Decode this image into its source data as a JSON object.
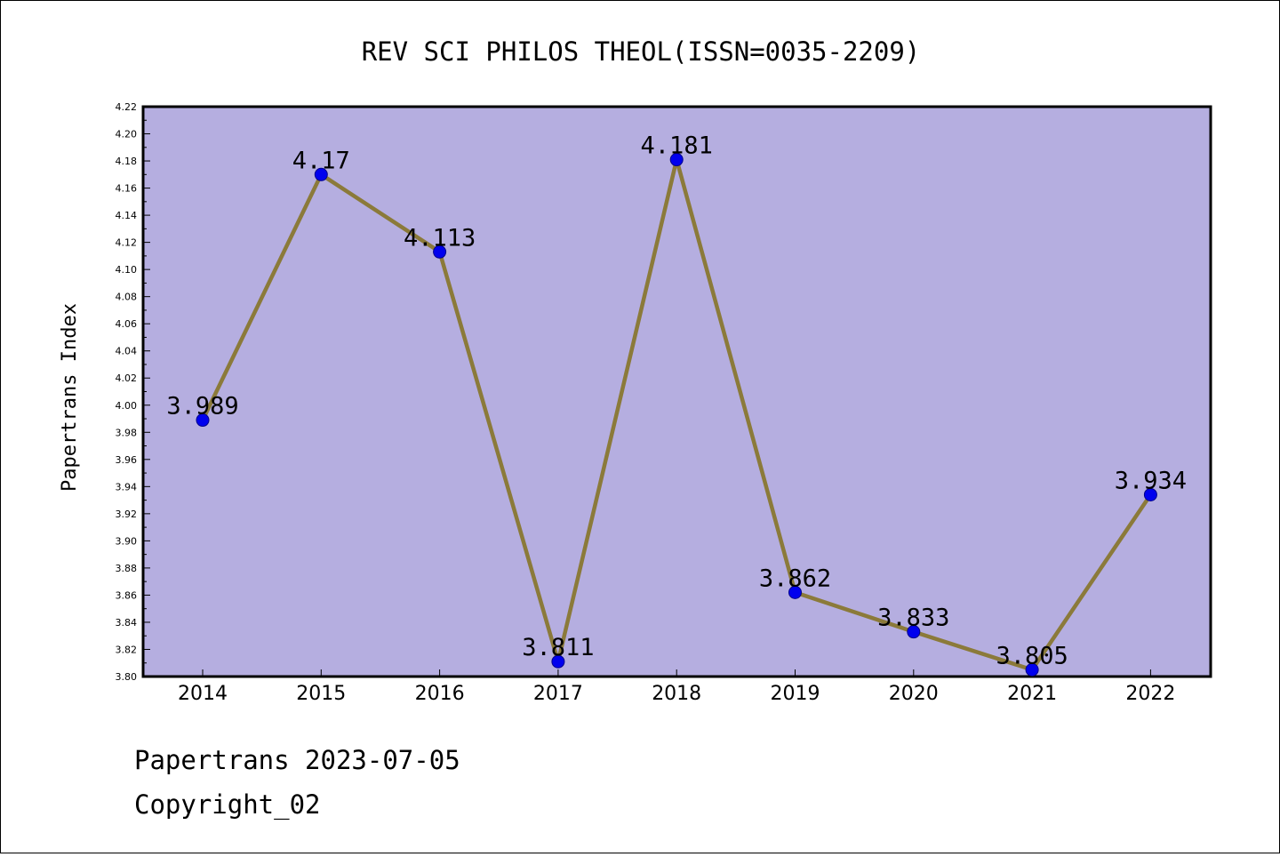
{
  "chart_data": {
    "type": "line",
    "title": "REV SCI PHILOS THEOL(ISSN=0035-2209)",
    "xlabel": "",
    "ylabel": "Papertrans Index",
    "categories": [
      "2014",
      "2015",
      "2016",
      "2017",
      "2018",
      "2019",
      "2020",
      "2021",
      "2022"
    ],
    "series": [
      {
        "values": [
          3.989,
          4.17,
          4.113,
          3.811,
          4.181,
          3.862,
          3.833,
          3.805,
          3.934
        ],
        "labels": [
          "3.989",
          "4.17",
          "4.113",
          "3.811",
          "4.181",
          "3.862",
          "3.833",
          "3.805",
          "3.934"
        ],
        "line_color": "#8b7a3a",
        "marker_color": "#0000ee"
      }
    ],
    "ylim": [
      3.8,
      4.22
    ],
    "yticks": [
      "3.80",
      "3.82",
      "3.84",
      "3.86",
      "3.88",
      "3.90",
      "3.92",
      "3.94",
      "3.96",
      "3.98",
      "4.00",
      "4.02",
      "4.04",
      "4.06",
      "4.08",
      "4.10",
      "4.12",
      "4.14",
      "4.16",
      "4.18",
      "4.20",
      "4.22"
    ],
    "plot_background": "#b5aee0",
    "grid": false
  },
  "footer": {
    "line1": "Papertrans 2023-07-05",
    "line2": "Copyright_02"
  }
}
